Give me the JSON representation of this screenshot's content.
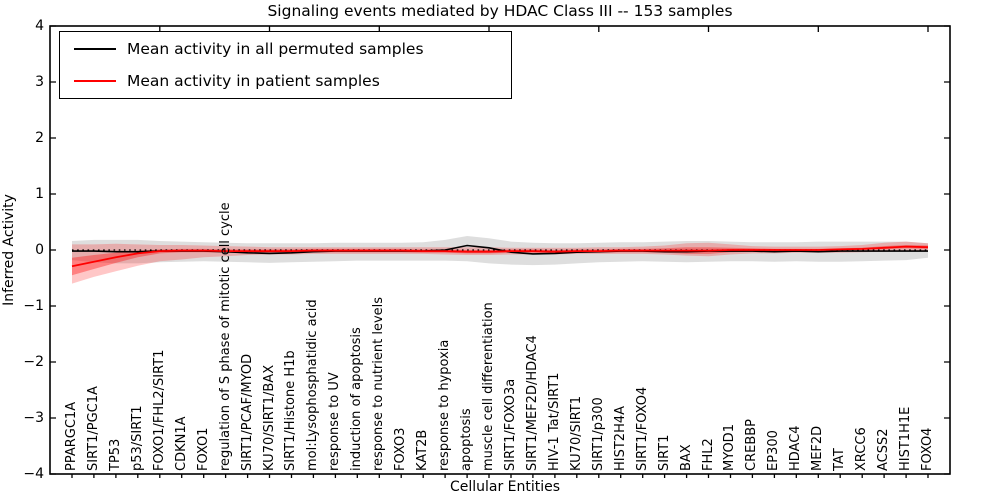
{
  "title": "Signaling events mediated by HDAC Class III -- 153 samples",
  "yaxis": {
    "label": "Inferred Activity",
    "ticks": [
      "4",
      "3",
      "2",
      "1",
      "0",
      "−1",
      "−2",
      "−3",
      "−4"
    ],
    "tick_values": [
      4,
      3,
      2,
      1,
      0,
      -1,
      -2,
      -3,
      -4
    ]
  },
  "xaxis": {
    "label": "Cellular Entities"
  },
  "legend": {
    "position": "upper left",
    "items": [
      {
        "label": "Mean activity in all permuted samples",
        "color": "#000000"
      },
      {
        "label": "Mean activity in patient samples",
        "color": "#ff0000"
      }
    ]
  },
  "colors": {
    "permuted_line": "#000000",
    "patient_line": "#ff0000",
    "permuted_band": "rgba(0,0,0,0.13)",
    "patient_band": "rgba(255,0,0,0.22)",
    "patient_band_inner": "rgba(255,0,0,0.35)",
    "zero_line": "#000000",
    "frame": "#000000"
  },
  "chart_data": {
    "type": "line",
    "title": "Signaling events mediated by HDAC Class III -- 153 samples",
    "xlabel": "Cellular Entities",
    "ylabel": "Inferred Activity",
    "ylim": [
      -4,
      4
    ],
    "grid": false,
    "legend_position": "upper left",
    "reference_line": {
      "y": 0,
      "style": "dotted"
    },
    "categories": [
      "PPARGC1A",
      "SIRT1/PGC1A",
      "TP53",
      "p53/SIRT1",
      "FOXO1/FHL2/SIRT1",
      "CDKN1A",
      "FOXO1",
      "regulation of S phase of mitotic cell cycle",
      "SIRT1/PCAF/MYOD",
      "KU70/SIRT1/BAX",
      "SIRT1/Histone H1b",
      "mol:Lysophosphatidic acid",
      "response to UV",
      "induction of apoptosis",
      "response to nutrient levels",
      "FOXO3",
      "KAT2B",
      "response to hypoxia",
      "apoptosis",
      "muscle cell differentiation",
      "SIRT1/FOXO3a",
      "SIRT1/MEF2D/HDAC4",
      "HIV-1 Tat/SIRT1",
      "KU70/SIRT1",
      "SIRT1/p300",
      "HIST2H4A",
      "SIRT1/FOXO4",
      "SIRT1",
      "BAX",
      "FHL2",
      "MYOD1",
      "CREBBP",
      "EP300",
      "HDAC4",
      "MEF2D",
      "TAT",
      "XRCC6",
      "ACSS2",
      "HIST1H1E",
      "FOXO4"
    ],
    "series": [
      {
        "name": "Mean activity in all permuted samples",
        "color": "#000000",
        "values": [
          -0.02,
          -0.02,
          -0.03,
          -0.03,
          -0.02,
          -0.02,
          -0.02,
          -0.03,
          -0.05,
          -0.06,
          -0.05,
          -0.03,
          -0.02,
          -0.02,
          -0.02,
          -0.02,
          -0.02,
          0.0,
          0.08,
          0.04,
          -0.04,
          -0.07,
          -0.06,
          -0.04,
          -0.03,
          -0.02,
          -0.02,
          -0.03,
          -0.03,
          -0.02,
          -0.02,
          -0.02,
          -0.03,
          -0.02,
          -0.03,
          -0.02,
          -0.02,
          -0.02,
          -0.02,
          -0.02
        ],
        "band_upper": [
          0.16,
          0.18,
          0.18,
          0.18,
          0.16,
          0.15,
          0.14,
          0.13,
          0.12,
          0.12,
          0.12,
          0.12,
          0.13,
          0.13,
          0.13,
          0.13,
          0.14,
          0.18,
          0.25,
          0.21,
          0.15,
          0.13,
          0.12,
          0.12,
          0.13,
          0.14,
          0.14,
          0.15,
          0.16,
          0.16,
          0.15,
          0.14,
          0.14,
          0.14,
          0.15,
          0.15,
          0.15,
          0.15,
          0.15,
          0.12
        ],
        "band_lower": [
          -0.18,
          -0.22,
          -0.24,
          -0.24,
          -0.22,
          -0.21,
          -0.2,
          -0.21,
          -0.22,
          -0.23,
          -0.22,
          -0.21,
          -0.2,
          -0.19,
          -0.19,
          -0.19,
          -0.19,
          -0.19,
          -0.2,
          -0.24,
          -0.26,
          -0.27,
          -0.26,
          -0.24,
          -0.22,
          -0.21,
          -0.2,
          -0.21,
          -0.22,
          -0.21,
          -0.2,
          -0.2,
          -0.21,
          -0.2,
          -0.21,
          -0.21,
          -0.2,
          -0.19,
          -0.18,
          -0.14
        ]
      },
      {
        "name": "Mean activity in patient samples",
        "color": "#ff0000",
        "values": [
          -0.29,
          -0.21,
          -0.13,
          -0.06,
          -0.02,
          -0.01,
          -0.01,
          -0.02,
          -0.02,
          -0.02,
          -0.02,
          -0.01,
          -0.01,
          -0.01,
          -0.01,
          -0.01,
          -0.02,
          -0.02,
          -0.03,
          -0.03,
          -0.02,
          -0.02,
          -0.03,
          -0.02,
          -0.02,
          -0.01,
          -0.01,
          -0.01,
          -0.01,
          -0.01,
          0.0,
          0.0,
          0.0,
          0.0,
          0.0,
          0.01,
          0.02,
          0.04,
          0.06,
          0.05
        ],
        "band_upper": [
          0.1,
          0.1,
          0.11,
          0.1,
          0.09,
          0.09,
          0.08,
          0.07,
          0.06,
          0.05,
          0.05,
          0.05,
          0.05,
          0.05,
          0.05,
          0.05,
          0.05,
          0.05,
          0.05,
          0.05,
          0.04,
          0.04,
          0.04,
          0.04,
          0.05,
          0.05,
          0.06,
          0.08,
          0.12,
          0.13,
          0.1,
          0.07,
          0.06,
          0.06,
          0.06,
          0.07,
          0.09,
          0.13,
          0.15,
          0.12
        ],
        "band_lower": [
          -0.6,
          -0.48,
          -0.38,
          -0.28,
          -0.2,
          -0.17,
          -0.13,
          -0.11,
          -0.09,
          -0.08,
          -0.08,
          -0.07,
          -0.07,
          -0.07,
          -0.07,
          -0.07,
          -0.07,
          -0.08,
          -0.09,
          -0.09,
          -0.08,
          -0.08,
          -0.08,
          -0.07,
          -0.07,
          -0.07,
          -0.07,
          -0.08,
          -0.1,
          -0.11,
          -0.08,
          -0.06,
          -0.06,
          -0.05,
          -0.05,
          -0.05,
          -0.04,
          -0.03,
          -0.02,
          -0.02
        ],
        "inner_band_upper": [
          -0.14,
          -0.09,
          -0.05,
          -0.01,
          0.01,
          0.02,
          0.02,
          0.01,
          0.01,
          0.01,
          0.01,
          0.02,
          0.02,
          0.02,
          0.02,
          0.02,
          0.01,
          0.01,
          0.0,
          0.0,
          0.01,
          0.01,
          0.0,
          0.01,
          0.01,
          0.02,
          0.02,
          0.03,
          0.05,
          0.05,
          0.04,
          0.03,
          0.02,
          0.02,
          0.02,
          0.03,
          0.04,
          0.07,
          0.09,
          0.08
        ],
        "inner_band_lower": [
          -0.45,
          -0.34,
          -0.23,
          -0.13,
          -0.06,
          -0.04,
          -0.04,
          -0.05,
          -0.05,
          -0.05,
          -0.05,
          -0.04,
          -0.04,
          -0.04,
          -0.04,
          -0.04,
          -0.05,
          -0.05,
          -0.06,
          -0.06,
          -0.05,
          -0.05,
          -0.06,
          -0.05,
          -0.05,
          -0.04,
          -0.04,
          -0.05,
          -0.07,
          -0.07,
          -0.04,
          -0.03,
          -0.02,
          -0.02,
          -0.02,
          -0.01,
          0.0,
          0.01,
          0.03,
          0.02
        ]
      }
    ]
  }
}
